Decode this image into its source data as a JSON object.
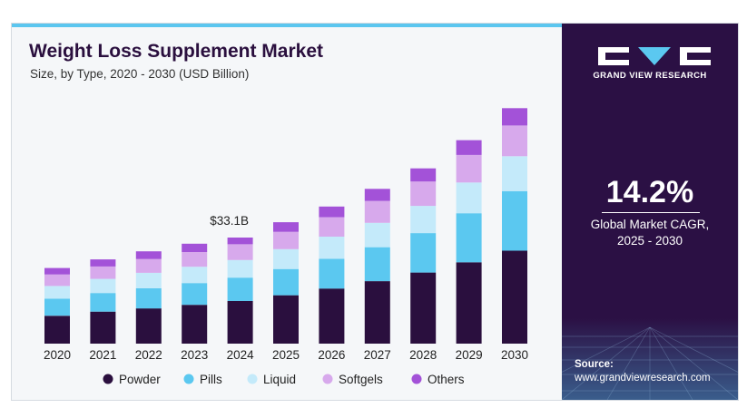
{
  "title": "Weight Loss Supplement Market",
  "subtitle": "Size, by Type, 2020 - 2030 (USD Billion)",
  "brand": {
    "name": "GRAND VIEW RESEARCH"
  },
  "cagr": {
    "value": "14.2%",
    "label_line1": "Global Market CAGR,",
    "label_line2": "2025 - 2030"
  },
  "source": {
    "label": "Source:",
    "url": "www.grandviewresearch.com"
  },
  "colors": {
    "Powder": "#2a0f3e",
    "Pills": "#5bc8f0",
    "Liquid": "#c4eafa",
    "Softgels": "#d7a9ec",
    "Others": "#a352d8"
  },
  "chart_data": {
    "type": "bar",
    "stacked": true,
    "title": "Weight Loss Supplement Market",
    "subtitle": "Size, by Type, 2020 - 2030 (USD Billion)",
    "categories": [
      "2020",
      "2021",
      "2022",
      "2023",
      "2024",
      "2025",
      "2026",
      "2027",
      "2028",
      "2029",
      "2030"
    ],
    "series": [
      {
        "name": "Powder",
        "values": [
          8.7,
          10.0,
          11.0,
          12.1,
          13.3,
          15.1,
          17.2,
          19.5,
          22.2,
          25.4,
          29.0
        ]
      },
      {
        "name": "Pills",
        "values": [
          5.3,
          5.8,
          6.3,
          6.8,
          7.3,
          8.2,
          9.3,
          10.6,
          12.3,
          15.3,
          18.6
        ]
      },
      {
        "name": "Liquid",
        "values": [
          4.0,
          4.4,
          4.8,
          5.1,
          5.5,
          6.2,
          6.9,
          7.6,
          8.5,
          9.6,
          10.9
        ]
      },
      {
        "name": "Softgels",
        "values": [
          3.6,
          3.9,
          4.3,
          4.6,
          4.9,
          5.4,
          6.1,
          6.8,
          7.6,
          8.6,
          9.6
        ]
      },
      {
        "name": "Others",
        "values": [
          2.0,
          2.2,
          2.4,
          2.6,
          2.1,
          3.0,
          3.3,
          3.8,
          4.1,
          4.6,
          5.4
        ]
      }
    ],
    "annotations": [
      {
        "category": "2024",
        "text": "$33.1B"
      }
    ],
    "ylim": [
      0,
      75
    ],
    "legend": "bottom",
    "grid": false
  }
}
